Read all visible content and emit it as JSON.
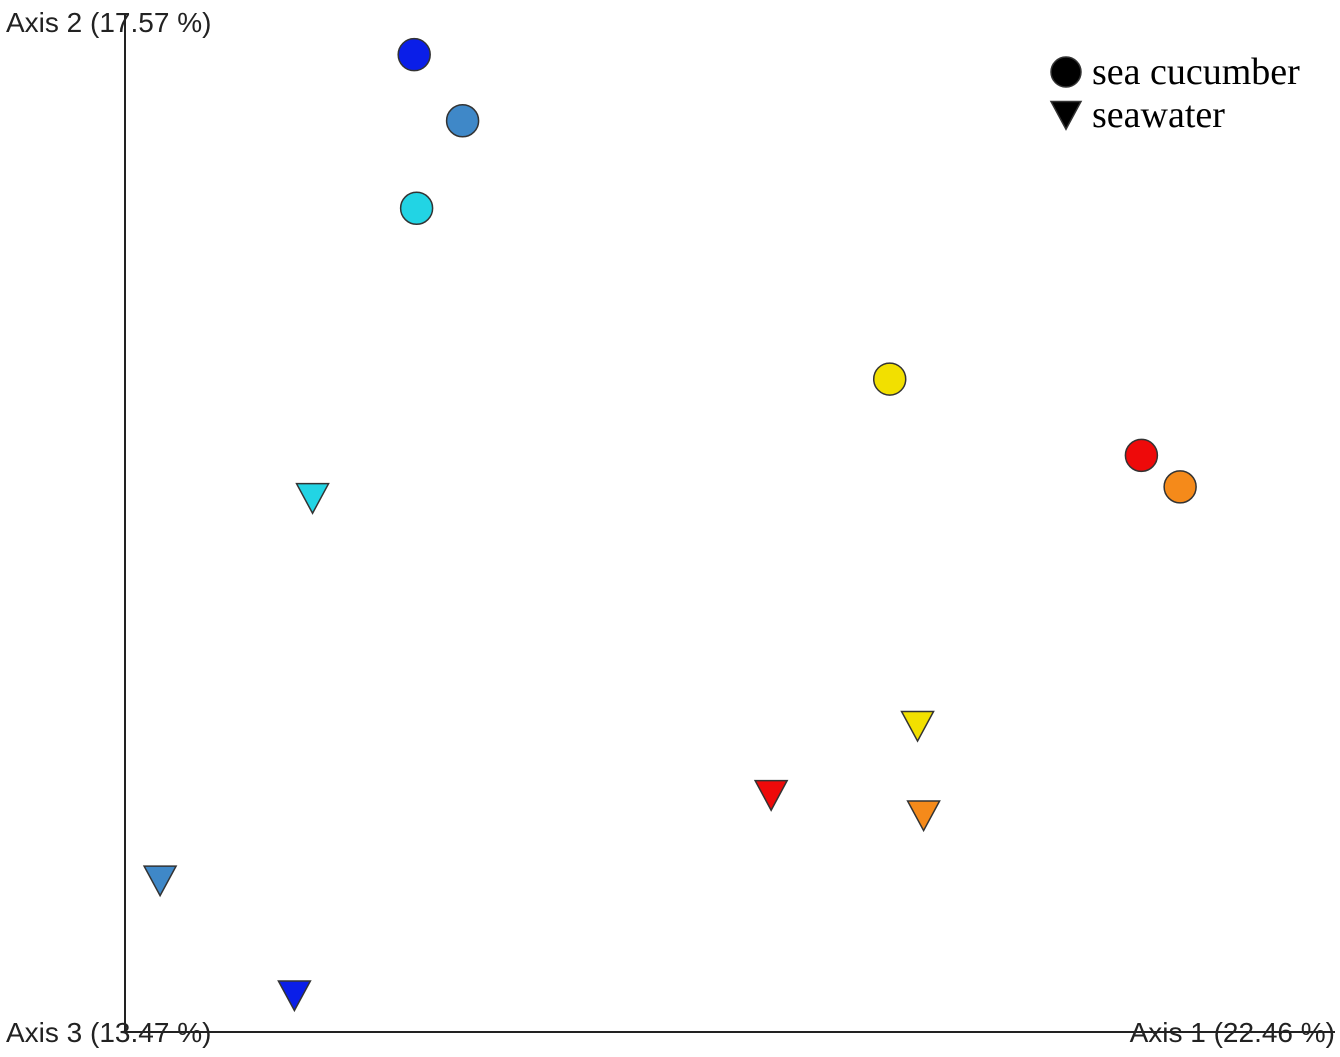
{
  "chart_data": {
    "type": "scatter",
    "x_label": "Axis 1 (22.46 %)",
    "y_label": "Axis 2 (17.57 %)",
    "z_label": "Axis 3 (13.47 %)",
    "xlim": [
      0,
      100
    ],
    "ylim": [
      0,
      100
    ],
    "legend": "upper right",
    "series": [
      {
        "name": "sea cucumber",
        "marker": "circle",
        "color": "#000000",
        "x": [
          23.9,
          27.9,
          24.1,
          63.2,
          84.0,
          87.2
        ],
        "values": [
          96.1,
          89.6,
          81.0,
          64.2,
          56.7,
          53.6
        ],
        "point_colors": [
          "#0a1ee8",
          "#3f88c8",
          "#22d4e4",
          "#f2e000",
          "#ee0a0a",
          "#f58a1a"
        ]
      },
      {
        "name": "seawater",
        "marker": "triangle-down",
        "color": "#000000",
        "x": [
          15.5,
          65.5,
          53.4,
          66.0,
          2.9,
          14.0
        ],
        "values": [
          52.5,
          30.1,
          23.3,
          21.3,
          14.9,
          3.6
        ],
        "point_colors": [
          "#22d4e4",
          "#f2e000",
          "#ee0a0a",
          "#f58a1a",
          "#3f88c8",
          "#0a1ee8"
        ]
      }
    ]
  }
}
